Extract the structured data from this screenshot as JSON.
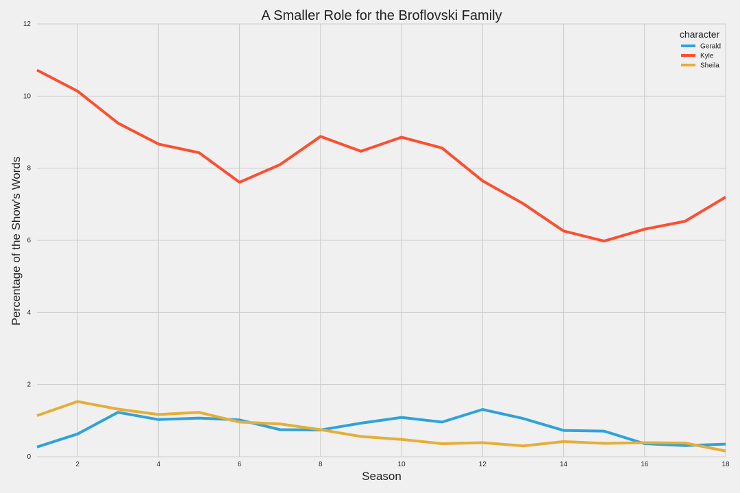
{
  "chart_data": {
    "type": "line",
    "title": "A Smaller Role for the Broflovski Family",
    "xlabel": "Season",
    "ylabel": "Percentage of the Show's Words",
    "xlim": [
      1,
      18
    ],
    "ylim": [
      0,
      12
    ],
    "x_ticks": [
      2,
      4,
      6,
      8,
      10,
      12,
      14,
      16,
      18
    ],
    "y_ticks": [
      0,
      2,
      4,
      6,
      8,
      10,
      12
    ],
    "grid": true,
    "legend": {
      "title": "character",
      "placement": "top-right"
    },
    "x": [
      1,
      2,
      3,
      4,
      5,
      6,
      7,
      8,
      9,
      10,
      11,
      12,
      13,
      14,
      15,
      16,
      17,
      18
    ],
    "series": [
      {
        "name": "Gerald",
        "color": "#30a2da",
        "values": [
          0.27,
          0.63,
          1.23,
          1.03,
          1.07,
          1.02,
          0.75,
          0.74,
          0.93,
          1.09,
          0.96,
          1.31,
          1.06,
          0.73,
          0.71,
          0.36,
          0.31,
          0.35
        ]
      },
      {
        "name": "Kyle",
        "color": "#fc4f30",
        "values": [
          10.72,
          10.14,
          9.25,
          8.67,
          8.43,
          7.61,
          8.1,
          8.88,
          8.47,
          8.86,
          8.56,
          7.65,
          7.02,
          6.26,
          5.98,
          6.31,
          6.53,
          7.2
        ]
      },
      {
        "name": "Sheila",
        "color": "#e5ae38",
        "values": [
          1.14,
          1.53,
          1.32,
          1.17,
          1.23,
          0.96,
          0.91,
          0.75,
          0.56,
          0.48,
          0.36,
          0.39,
          0.3,
          0.42,
          0.37,
          0.39,
          0.38,
          0.16
        ]
      }
    ]
  }
}
